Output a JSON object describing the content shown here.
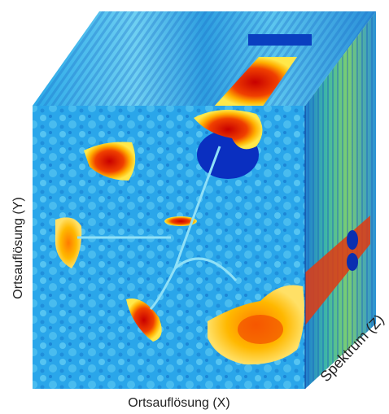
{
  "labels": {
    "y_axis": "Ortsauflösung (Y)",
    "x_axis": "Ortsauflösung (X)",
    "z_axis": "Spektrum (Z)"
  }
}
